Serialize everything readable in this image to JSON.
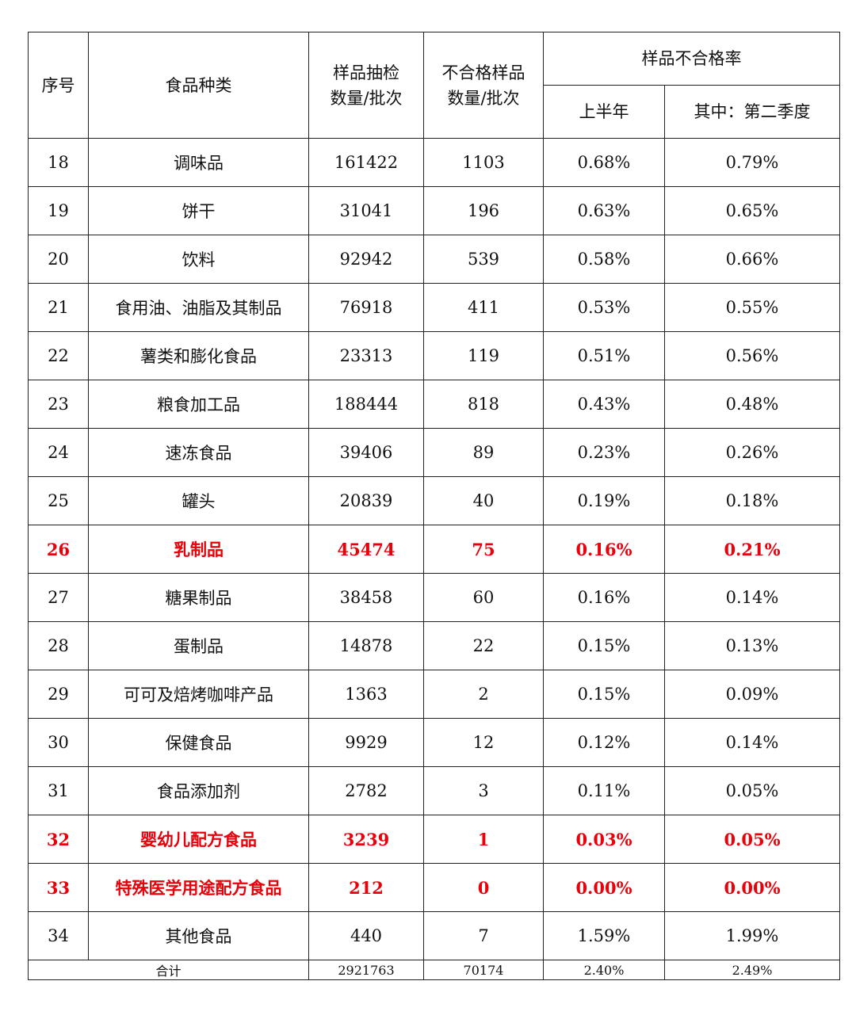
{
  "headers": {
    "index": "序号",
    "category": "食品种类",
    "samples": "样品抽检\n数量/批次",
    "failed": "不合格样品\n数量/批次",
    "rate_group": "样品不合格率",
    "h1": "上半年",
    "q2": "其中：第二季度"
  },
  "colors": {
    "highlight": "#e8000a",
    "text": "#111111",
    "border": "#222222"
  },
  "rows": [
    {
      "index": "18",
      "category": "调味品",
      "samples": "161422",
      "failed": "1103",
      "h1": "0.68%",
      "q2": "0.79%",
      "highlight": false
    },
    {
      "index": "19",
      "category": "饼干",
      "samples": "31041",
      "failed": "196",
      "h1": "0.63%",
      "q2": "0.65%",
      "highlight": false
    },
    {
      "index": "20",
      "category": "饮料",
      "samples": "92942",
      "failed": "539",
      "h1": "0.58%",
      "q2": "0.66%",
      "highlight": false
    },
    {
      "index": "21",
      "category": "食用油、油脂及其制品",
      "samples": "76918",
      "failed": "411",
      "h1": "0.53%",
      "q2": "0.55%",
      "highlight": false
    },
    {
      "index": "22",
      "category": "薯类和膨化食品",
      "samples": "23313",
      "failed": "119",
      "h1": "0.51%",
      "q2": "0.56%",
      "highlight": false
    },
    {
      "index": "23",
      "category": "粮食加工品",
      "samples": "188444",
      "failed": "818",
      "h1": "0.43%",
      "q2": "0.48%",
      "highlight": false
    },
    {
      "index": "24",
      "category": "速冻食品",
      "samples": "39406",
      "failed": "89",
      "h1": "0.23%",
      "q2": "0.26%",
      "highlight": false
    },
    {
      "index": "25",
      "category": "罐头",
      "samples": "20839",
      "failed": "40",
      "h1": "0.19%",
      "q2": "0.18%",
      "highlight": false
    },
    {
      "index": "26",
      "category": "乳制品",
      "samples": "45474",
      "failed": "75",
      "h1": "0.16%",
      "q2": "0.21%",
      "highlight": true
    },
    {
      "index": "27",
      "category": "糖果制品",
      "samples": "38458",
      "failed": "60",
      "h1": "0.16%",
      "q2": "0.14%",
      "highlight": false
    },
    {
      "index": "28",
      "category": "蛋制品",
      "samples": "14878",
      "failed": "22",
      "h1": "0.15%",
      "q2": "0.13%",
      "highlight": false
    },
    {
      "index": "29",
      "category": "可可及焙烤咖啡产品",
      "samples": "1363",
      "failed": "2",
      "h1": "0.15%",
      "q2": "0.09%",
      "highlight": false
    },
    {
      "index": "30",
      "category": "保健食品",
      "samples": "9929",
      "failed": "12",
      "h1": "0.12%",
      "q2": "0.14%",
      "highlight": false
    },
    {
      "index": "31",
      "category": "食品添加剂",
      "samples": "2782",
      "failed": "3",
      "h1": "0.11%",
      "q2": "0.05%",
      "highlight": false
    },
    {
      "index": "32",
      "category": "婴幼儿配方食品",
      "samples": "3239",
      "failed": "1",
      "h1": "0.03%",
      "q2": "0.05%",
      "highlight": true
    },
    {
      "index": "33",
      "category": "特殊医学用途配方食品",
      "samples": "212",
      "failed": "0",
      "h1": "0.00%",
      "q2": "0.00%",
      "highlight": true
    },
    {
      "index": "34",
      "category": "其他食品",
      "samples": "440",
      "failed": "7",
      "h1": "1.59%",
      "q2": "1.99%",
      "highlight": false
    }
  ],
  "total": {
    "label": "合计",
    "samples": "2921763",
    "failed": "70174",
    "h1": "2.40%",
    "q2": "2.49%"
  }
}
